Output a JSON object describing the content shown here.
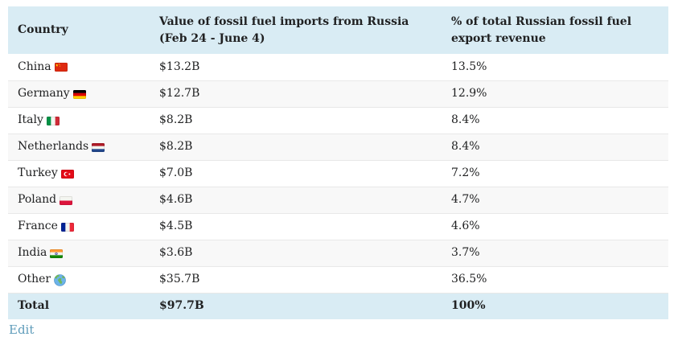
{
  "table": {
    "columns": [
      {
        "label": "Country"
      },
      {
        "label": "Value of fossil fuel imports from Russia (Feb 24 - June 4)"
      },
      {
        "label": "% of total Russian fossil fuel export revenue"
      }
    ],
    "rows": [
      {
        "country": "China",
        "flag": "china",
        "value": "$13.2B",
        "share": "13.5%"
      },
      {
        "country": "Germany",
        "flag": "germany",
        "value": "$12.7B",
        "share": "12.9%"
      },
      {
        "country": "Italy",
        "flag": "italy",
        "value": "$8.2B",
        "share": "8.4%"
      },
      {
        "country": "Netherlands",
        "flag": "netherlands",
        "value": "$8.2B",
        "share": "8.4%"
      },
      {
        "country": "Turkey",
        "flag": "turkey",
        "value": "$7.0B",
        "share": "7.2%"
      },
      {
        "country": "Poland",
        "flag": "poland",
        "value": "$4.6B",
        "share": "4.7%"
      },
      {
        "country": "France",
        "flag": "france",
        "value": "$4.5B",
        "share": "4.6%"
      },
      {
        "country": "India",
        "flag": "india",
        "value": "$3.6B",
        "share": "3.7%"
      },
      {
        "country": "Other",
        "flag": "globe",
        "value": "$35.7B",
        "share": "36.5%"
      }
    ],
    "total": {
      "label": "Total",
      "value": "$97.7B",
      "share": "100%"
    }
  },
  "footer": {
    "edit_label": "Edit"
  },
  "colors": {
    "header_bg": "#d9ecf4",
    "alt_row_bg": "#f8f8f8",
    "row_border": "#e8e8e8",
    "text": "#202122",
    "link": "#5f9cba"
  },
  "flags": {
    "china": {
      "type": "solid",
      "bg": "#DE2910",
      "overlay": "stars-china"
    },
    "germany": {
      "type": "h",
      "colors": [
        "#000000",
        "#DD0000",
        "#FFCE00"
      ]
    },
    "italy": {
      "type": "v",
      "colors": [
        "#009246",
        "#F4F5F0",
        "#CE2B37"
      ]
    },
    "netherlands": {
      "type": "h",
      "colors": [
        "#AE1C28",
        "#F4F5F0",
        "#21468B"
      ]
    },
    "turkey": {
      "type": "solid",
      "bg": "#E30A17",
      "overlay": "crescent-star"
    },
    "poland": {
      "type": "h",
      "colors": [
        "#F4F5F0",
        "#DC143C"
      ]
    },
    "france": {
      "type": "v",
      "colors": [
        "#002395",
        "#F4F5F0",
        "#ED2939"
      ]
    },
    "india": {
      "type": "h",
      "colors": [
        "#FF9933",
        "#F4F5F0",
        "#138808"
      ],
      "overlay": "chakra"
    },
    "globe": {
      "type": "globe",
      "ocean": "#6CB3E8",
      "land": "#70B85C",
      "rim": "#4289C1"
    }
  }
}
